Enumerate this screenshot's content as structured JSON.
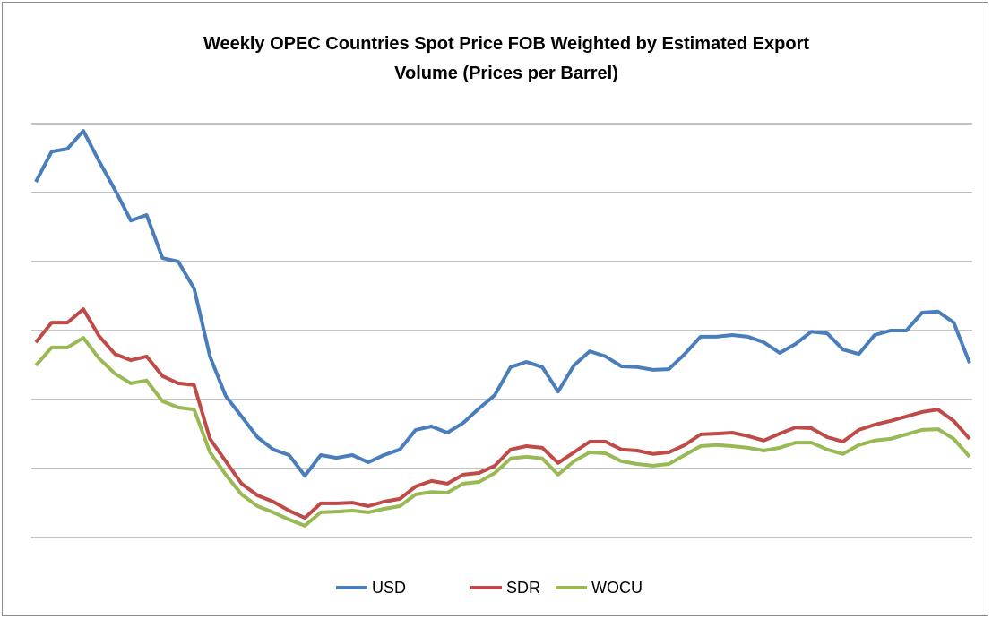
{
  "chart_data": {
    "type": "line",
    "title": "Weekly OPEC Countries Spot Price FOB Weighted by Estimated Export Volume  (Prices per Barrel)",
    "categories": [
      null,
      null,
      null,
      null,
      null,
      null,
      null,
      null,
      null,
      null,
      null,
      null,
      null,
      null,
      null,
      null,
      null,
      null,
      null,
      null,
      null,
      null,
      null,
      null,
      null,
      null,
      null,
      null,
      null,
      null,
      null,
      null,
      null,
      null,
      null,
      null,
      null,
      null,
      null,
      null,
      null,
      null,
      null,
      null,
      null,
      null,
      null,
      null,
      null,
      null,
      null,
      null,
      null,
      null,
      null,
      null,
      null,
      null,
      null,
      null
    ],
    "series": [
      {
        "name": "USD",
        "color": "#4a7ebb",
        "values": [
          103.1,
          111.9,
          112.7,
          117.9,
          109.1,
          100.8,
          91.9,
          93.5,
          81.0,
          80.0,
          72.2,
          52.5,
          41.0,
          35.1,
          29.1,
          25.5,
          23.9,
          17.9,
          23.9,
          23.1,
          23.9,
          21.8,
          23.9,
          25.5,
          31.2,
          32.2,
          30.4,
          33.2,
          37.4,
          41.3,
          49.4,
          50.9,
          49.4,
          42.3,
          49.9,
          54.0,
          52.5,
          49.6,
          49.4,
          48.6,
          48.8,
          53.2,
          58.2,
          58.2,
          58.7,
          58.2,
          56.6,
          53.5,
          56.1,
          59.7,
          59.2,
          54.5,
          53.2,
          58.7,
          60.0,
          60.0,
          65.2,
          65.5,
          62.3,
          50.6
        ]
      },
      {
        "name": "SDR",
        "color": "#be4b48",
        "values": [
          56.6,
          62.3,
          62.3,
          66.2,
          58.4,
          53.2,
          51.4,
          52.5,
          46.8,
          44.7,
          44.2,
          28.6,
          22.1,
          15.6,
          12.2,
          10.4,
          7.8,
          5.7,
          9.9,
          9.9,
          10.1,
          9.1,
          10.4,
          11.2,
          14.8,
          16.4,
          15.6,
          18.2,
          18.7,
          20.8,
          25.5,
          26.5,
          26.0,
          21.6,
          24.7,
          27.8,
          27.8,
          25.5,
          25.2,
          24.2,
          24.7,
          26.8,
          29.9,
          30.1,
          30.4,
          29.4,
          28.1,
          30.1,
          31.9,
          31.7,
          29.1,
          27.8,
          31.2,
          32.7,
          33.8,
          35.1,
          36.4,
          37.1,
          33.8,
          28.6
        ]
      },
      {
        "name": "WOCU",
        "color": "#98b954",
        "values": [
          49.9,
          55.1,
          55.1,
          57.9,
          51.9,
          47.5,
          44.7,
          45.5,
          39.5,
          37.7,
          37.1,
          24.7,
          18.2,
          12.5,
          9.1,
          7.3,
          5.2,
          3.4,
          7.3,
          7.5,
          7.8,
          7.3,
          8.3,
          9.1,
          12.5,
          13.2,
          13.0,
          15.6,
          16.1,
          18.7,
          22.9,
          23.4,
          22.9,
          18.2,
          22.1,
          24.7,
          24.4,
          22.1,
          21.3,
          20.8,
          21.3,
          23.9,
          26.5,
          26.8,
          26.5,
          26.0,
          25.2,
          26.0,
          27.5,
          27.5,
          25.5,
          24.2,
          26.8,
          28.1,
          28.6,
          29.9,
          31.2,
          31.4,
          28.6,
          23.4
        ]
      }
    ],
    "ylim": [
      0,
      140
    ],
    "yticks": [
      0,
      20,
      40,
      60,
      80,
      100,
      120
    ],
    "grid": true,
    "legend": "bottom"
  }
}
